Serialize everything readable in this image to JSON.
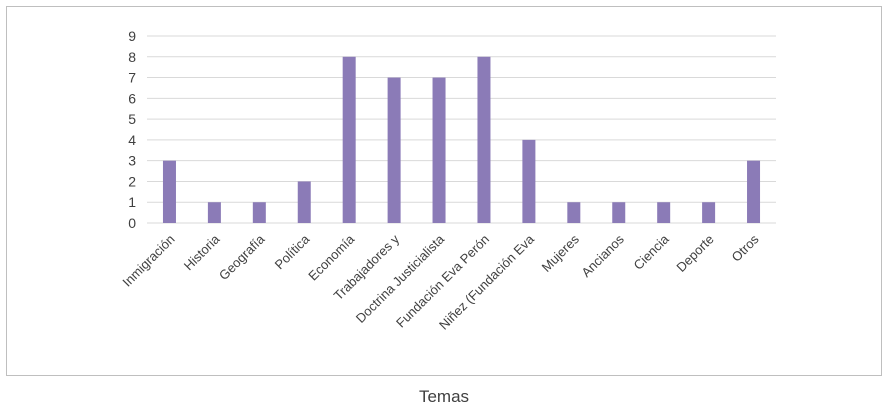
{
  "chart_data": {
    "type": "bar",
    "categories": [
      "Inmigración",
      "Historia",
      "Geografía",
      "Política",
      "Economía",
      "Trabajadores y",
      "Doctrina Justicialista",
      "Fundación Eva Perón",
      "Niñez (Fundación Eva",
      "Mujeres",
      "Ancianos",
      "Ciencia",
      "Deporte",
      "Otros"
    ],
    "values": [
      3,
      1,
      1,
      2,
      8,
      7,
      7,
      8,
      4,
      1,
      1,
      1,
      1,
      3
    ],
    "ylim": [
      0,
      9
    ],
    "yticks": [
      0,
      1,
      2,
      3,
      4,
      5,
      6,
      7,
      8,
      9
    ],
    "grid": true,
    "bar_color": "#8b7bb7",
    "title": "",
    "xlabel": "Temas",
    "ylabel": ""
  }
}
